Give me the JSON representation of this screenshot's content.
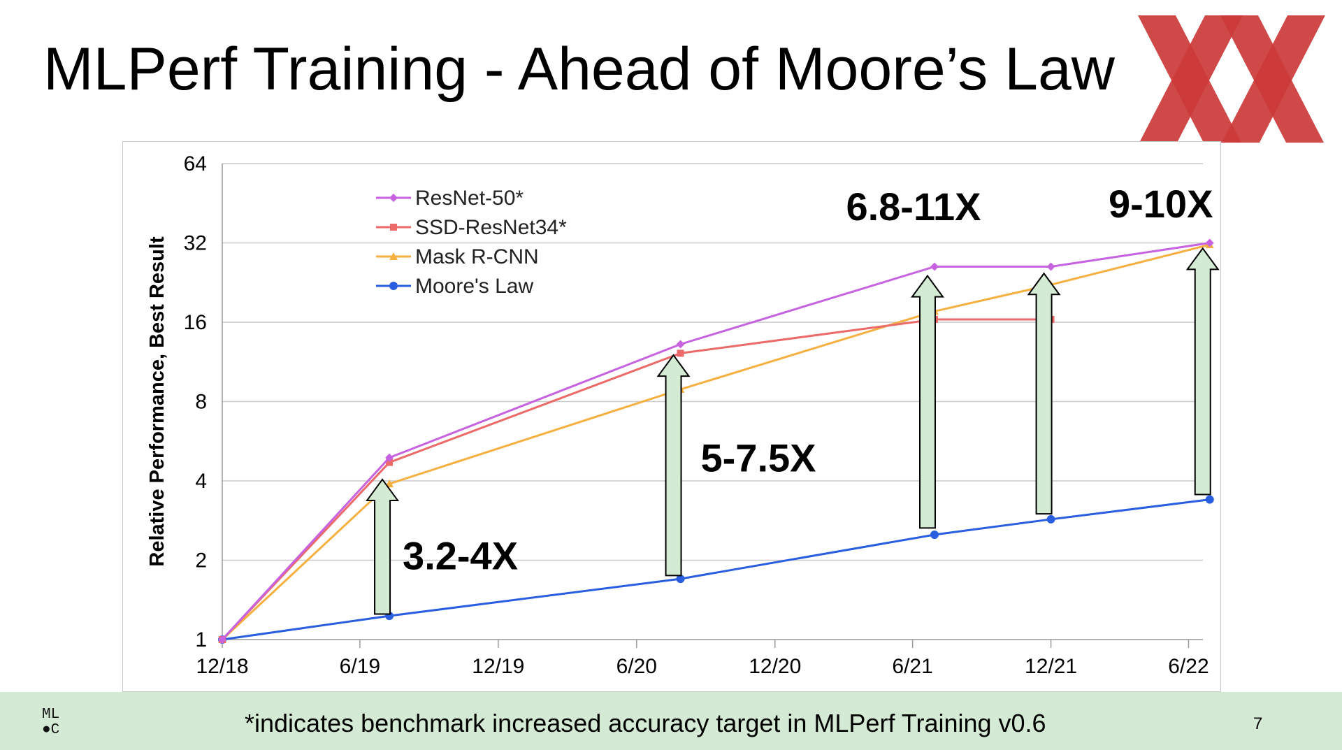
{
  "slide": {
    "title": "MLPerf Training - Ahead of Moore’s Law",
    "footnote": "*indicates benchmark increased accuracy target in MLPerf Training v0.6",
    "page_number": "7",
    "logo_top": "ML",
    "logo_bottom": "C",
    "brand_color": "#cc3a3a",
    "footer_color": "#d5ead5"
  },
  "chart_data": {
    "type": "line",
    "title": "",
    "xlabel": "",
    "ylabel": "Relative Performance, Best Result",
    "yscale": "log2",
    "ylim": [
      1,
      64
    ],
    "yticks": [
      1,
      2,
      4,
      8,
      16,
      32,
      64
    ],
    "ytick_labels": [
      "1",
      "2",
      "4",
      "8",
      "16",
      "32",
      "64"
    ],
    "xlim": [
      "2018-12-01",
      "2022-06-20"
    ],
    "xticks": [
      "2018-12-01",
      "2019-06-01",
      "2019-12-01",
      "2020-06-01",
      "2020-12-01",
      "2021-06-01",
      "2021-12-01",
      "2022-06-01"
    ],
    "xtick_labels": [
      "12/18",
      "6/19",
      "12/19",
      "6/20",
      "12/20",
      "6/21",
      "12/21",
      "6/22"
    ],
    "grid": "horizontal",
    "legend_position": "top-left",
    "series": [
      {
        "name": "ResNet-50*",
        "color": "#c763e0",
        "marker": "diamond",
        "points": [
          [
            "2018-12-01",
            1
          ],
          [
            "2019-07-10",
            4.9
          ],
          [
            "2020-07-29",
            13.2
          ],
          [
            "2021-06-30",
            26
          ],
          [
            "2021-12-01",
            26
          ],
          [
            "2022-06-29",
            32
          ]
        ]
      },
      {
        "name": "SSD-ResNet34*",
        "color": "#ec6a6a",
        "marker": "square",
        "points": [
          [
            "2018-12-01",
            1
          ],
          [
            "2019-07-10",
            4.7
          ],
          [
            "2020-07-29",
            12.2
          ],
          [
            "2021-06-30",
            16.4
          ],
          [
            "2021-12-01",
            16.4
          ]
        ]
      },
      {
        "name": "Mask R-CNN",
        "color": "#f6b041",
        "marker": "triangle",
        "points": [
          [
            "2018-12-01",
            1
          ],
          [
            "2019-07-10",
            3.9
          ],
          [
            "2020-07-29",
            8.9
          ],
          [
            "2021-06-30",
            17.6
          ],
          [
            "2021-12-01",
            22.2
          ],
          [
            "2022-06-29",
            31.5
          ]
        ]
      },
      {
        "name": "Moore's Law",
        "color": "#2a5ee0",
        "marker": "circle",
        "points": [
          [
            "2018-12-01",
            1
          ],
          [
            "2019-07-10",
            1.23
          ],
          [
            "2020-07-29",
            1.7
          ],
          [
            "2021-06-30",
            2.5
          ],
          [
            "2021-12-01",
            2.86
          ],
          [
            "2022-06-29",
            3.4
          ]
        ]
      }
    ],
    "annotations": [
      {
        "text": "3.2-4X",
        "date": "2019-07-10",
        "from": 1.25,
        "to": 4.05
      },
      {
        "text": "5-7.5X",
        "date": "2020-07-29",
        "from": 1.75,
        "to": 12.0
      },
      {
        "text": "6.8-11X",
        "date": "2021-06-30",
        "from": 2.65,
        "to": 24.0
      },
      {
        "text": "",
        "date": "2021-12-01",
        "from": 3.0,
        "to": 24.5
      },
      {
        "text": "9-10X",
        "date": "2022-06-29",
        "from": 3.55,
        "to": 30.5
      }
    ],
    "arrow_color": "#d3ead3",
    "axis_color": "#9a9a9a",
    "grid_color": "#c9c9c9"
  }
}
